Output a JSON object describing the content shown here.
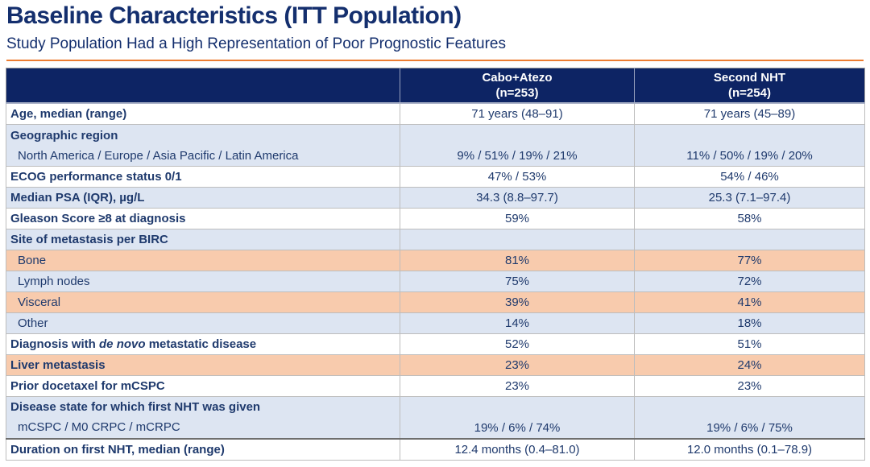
{
  "slide": {
    "title": "Baseline Characteristics (ITT Population)",
    "subtitle": "Study Population Had a High Representation of Poor Prognostic Features"
  },
  "colors": {
    "title_navy": "#142f6e",
    "header_navy": "#0d2464",
    "text_navy": "#1f3a6d",
    "row_blue": "#dde5f2",
    "row_orange": "#f8cbad",
    "accent_orange": "#ed7d31"
  },
  "table": {
    "header": {
      "col1": {
        "line1": "Cabo+Atezo",
        "line2": "(n=253)"
      },
      "col2": {
        "line1": "Second NHT",
        "line2": "(n=254)"
      }
    },
    "rows": [
      {
        "label": "Age, median (range)",
        "cabo_atezo": "71 years (48–91)",
        "second_nht": "71 years (45–89)"
      },
      {
        "label": "Geographic region",
        "sublabel": "North America / Europe / Asia Pacific / Latin America",
        "cabo_atezo": "9% / 51% / 19% / 21%",
        "second_nht": "11% / 50% / 19% / 20%"
      },
      {
        "label": "ECOG performance status 0/1",
        "cabo_atezo": "47% / 53%",
        "second_nht": "54% / 46%"
      },
      {
        "label": "Median PSA (IQR), µg/L",
        "cabo_atezo": "34.3 (8.8–97.7)",
        "second_nht": "25.3 (7.1–97.4)"
      },
      {
        "label": "Gleason Score ≥8 at diagnosis",
        "cabo_atezo": "59%",
        "second_nht": "58%"
      },
      {
        "label": "Site of metastasis per BIRC",
        "cabo_atezo": "",
        "second_nht": ""
      },
      {
        "label": "Bone",
        "cabo_atezo": "81%",
        "second_nht": "77%"
      },
      {
        "label": "Lymph nodes",
        "cabo_atezo": "75%",
        "second_nht": "72%"
      },
      {
        "label": "Visceral",
        "cabo_atezo": "39%",
        "second_nht": "41%"
      },
      {
        "label": "Other",
        "cabo_atezo": "14%",
        "second_nht": "18%"
      },
      {
        "label": "Diagnosis with ",
        "label_italic": "de novo",
        "label_suffix": " metastatic disease",
        "cabo_atezo": "52%",
        "second_nht": "51%"
      },
      {
        "label": "Liver metastasis",
        "cabo_atezo": "23%",
        "second_nht": "24%"
      },
      {
        "label": "Prior docetaxel for mCSPC",
        "cabo_atezo": "23%",
        "second_nht": "23%"
      },
      {
        "label": "Disease state for which first NHT was given",
        "sublabel": "mCSPC / M0 CRPC / mCRPC",
        "cabo_atezo": "19% / 6% / 74%",
        "second_nht": "19% / 6% / 75%"
      },
      {
        "label": "Duration on first NHT, median (range)",
        "cabo_atezo": "12.4 months (0.4–81.0)",
        "second_nht": "12.0 months (0.1–78.9)"
      }
    ]
  }
}
